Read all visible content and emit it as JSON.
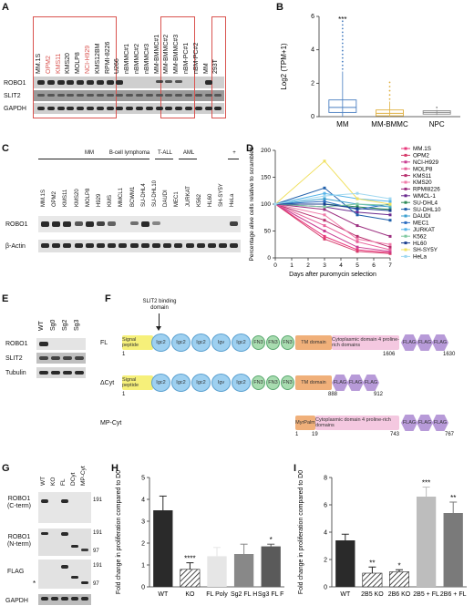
{
  "panels": {
    "A": {
      "label": "A",
      "lanes": [
        {
          "name": "MM.1S",
          "red": false
        },
        {
          "name": "OPM2",
          "red": true
        },
        {
          "name": "KMS11",
          "red": true
        },
        {
          "name": "KMS20",
          "red": false
        },
        {
          "name": "MOLP8",
          "red": false
        },
        {
          "name": "NCI-H929",
          "red": true
        },
        {
          "name": "KMS12BM",
          "red": false
        },
        {
          "name": "RPMI-8226",
          "red": false
        },
        {
          "name": "U266",
          "red": false
        },
        {
          "name": "nBMMC#1",
          "red": false
        },
        {
          "name": "nBMMC#2",
          "red": false
        },
        {
          "name": "nBMMC#3",
          "red": false
        },
        {
          "name": "MM-BMMC#1",
          "red": false
        },
        {
          "name": "MM-BMMC#2",
          "red": false
        },
        {
          "name": "MM-BMMC#3",
          "red": false
        },
        {
          "name": "nBM-PC#1",
          "red": false
        },
        {
          "name": "nBM-PC#2",
          "red": false
        },
        {
          "name": "MM",
          "red": false
        },
        {
          "name": "293T",
          "red": false
        }
      ],
      "rows": [
        "ROBO1",
        "SLIT2",
        "GAPDH"
      ]
    },
    "B": {
      "label": "B",
      "significance": "***"
    },
    "C": {
      "label": "C",
      "groups": [
        "MM",
        "B-cell lymphoma",
        "T-ALL",
        "AML",
        "+"
      ],
      "lanes": [
        "MM.1S",
        "OPM2",
        "KMS11",
        "KMS20",
        "MOLP8",
        "H929",
        "KMS",
        "MMCL1",
        "BCWM1",
        "SU-DHL4",
        "SU-DHL10",
        "DAUDI",
        "MEC1",
        "JURKAT",
        "K562",
        "HL60",
        "SH-SY5Y",
        "HeLa"
      ],
      "rows": [
        "ROBO1",
        "β-Actin"
      ]
    },
    "D": {
      "label": "D"
    },
    "E": {
      "label": "E",
      "lanes": [
        "WT",
        "Sg0",
        "Sg2",
        "Sg3"
      ],
      "rows": [
        "ROBO1",
        "SLIT2",
        "Tubulin"
      ]
    },
    "F": {
      "label": "F",
      "annotation": "SLIT2 binding domain",
      "constructs": [
        {
          "name": "FL",
          "start": "1",
          "end": "1606",
          "end2": "1630"
        },
        {
          "name": "ΔCyt",
          "start": "1",
          "mid": "888",
          "end": "912"
        },
        {
          "name": "MP-Cyt",
          "start": "1",
          "mid": "19",
          "end": "743",
          "end2": "767"
        }
      ],
      "domains": {
        "signal": "Signal peptide",
        "igc2": "Igc2",
        "igv": "Igv",
        "fn3": "FN3",
        "tm": "TM domain",
        "cyto": "Cytoplasmic domain 4 proline-rich domains",
        "flag": "FLAG",
        "myr": "MyrPalm"
      }
    },
    "G": {
      "label": "G",
      "lanes": [
        "WT",
        "KO",
        "FL",
        "DCyt",
        "MP-Cyt"
      ],
      "rows": [
        "ROBO1 (C-term)",
        "ROBO1 (N-term)",
        "FLAG",
        "GAPDH"
      ],
      "markers": [
        "191",
        "191",
        "97",
        "191",
        "97"
      ],
      "star": "*"
    },
    "H": {
      "label": "H"
    },
    "I": {
      "label": "I"
    }
  },
  "chart_data": [
    {
      "type": "box",
      "panel": "B",
      "ylabel": "Log2 (TPM+1)",
      "categories": [
        "MM",
        "MM-BMMC",
        "NPC"
      ],
      "ylim": [
        0,
        6
      ],
      "yticks": [
        0,
        2,
        4,
        6
      ],
      "boxes": [
        {
          "name": "MM",
          "q1": 0.25,
          "median": 0.55,
          "q3": 1.0,
          "whisker_low": 0,
          "whisker_high": 2.7,
          "color": "#4a7fc1"
        },
        {
          "name": "MM-BMMC",
          "q1": 0.05,
          "median": 0.2,
          "q3": 0.4,
          "whisker_low": 0,
          "whisker_high": 0.9,
          "color": "#e0b040"
        },
        {
          "name": "NPC",
          "q1": 0.15,
          "median": 0.25,
          "q3": 0.35,
          "whisker_low": 0.1,
          "whisker_high": 0.4,
          "color": "#888888"
        }
      ]
    },
    {
      "type": "line",
      "panel": "D",
      "xlabel": "Days after puromycin selection",
      "ylabel": "Percentage alive cells relative to scrambled",
      "x": [
        0,
        3,
        5,
        7
      ],
      "xlim": [
        0,
        7
      ],
      "xticks": [
        0,
        1,
        2,
        3,
        4,
        5,
        6,
        7
      ],
      "ylim": [
        0,
        200
      ],
      "yticks": [
        0,
        50,
        100,
        150,
        200
      ],
      "series": [
        {
          "name": "MM.1S",
          "color": "#e8357a",
          "values": [
            100,
            40,
            15,
            10
          ]
        },
        {
          "name": "OPM2",
          "color": "#d63a6a",
          "values": [
            100,
            35,
            12,
            8
          ]
        },
        {
          "name": "NCI-H929",
          "color": "#c93d92",
          "values": [
            100,
            50,
            20,
            12
          ]
        },
        {
          "name": "MOLP8",
          "color": "#e8609a",
          "values": [
            100,
            60,
            30,
            15
          ]
        },
        {
          "name": "KMS11",
          "color": "#b8306e",
          "values": [
            100,
            70,
            40,
            20
          ]
        },
        {
          "name": "KMS20",
          "color": "#f07ba8",
          "values": [
            100,
            80,
            35,
            25
          ]
        },
        {
          "name": "RPMI8226",
          "color": "#9b2d7f",
          "values": [
            100,
            90,
            60,
            40
          ]
        },
        {
          "name": "WMCL-1",
          "color": "#6a2a8f",
          "values": [
            100,
            95,
            85,
            80
          ]
        },
        {
          "name": "SU-DHL4",
          "color": "#2e8b57",
          "values": [
            100,
            100,
            95,
            90
          ]
        },
        {
          "name": "SU-DHL10",
          "color": "#1f5faa",
          "values": [
            100,
            130,
            80,
            70
          ]
        },
        {
          "name": "DAUDI",
          "color": "#3ca0d0",
          "values": [
            100,
            110,
            100,
            95
          ]
        },
        {
          "name": "MEC1",
          "color": "#2b6cc0",
          "values": [
            100,
            105,
            90,
            100
          ]
        },
        {
          "name": "JURKAT",
          "color": "#56b4e9",
          "values": [
            100,
            120,
            110,
            105
          ]
        },
        {
          "name": "K562",
          "color": "#7ec8a0",
          "values": [
            100,
            95,
            100,
            98
          ]
        },
        {
          "name": "HL60",
          "color": "#1b3f8f",
          "values": [
            100,
            100,
            92,
            88
          ]
        },
        {
          "name": "SH-SY5Y",
          "color": "#f0e060",
          "values": [
            100,
            180,
            110,
            100
          ]
        },
        {
          "name": "HeLa",
          "color": "#a0d8f0",
          "values": [
            100,
            115,
            120,
            110
          ]
        }
      ]
    },
    {
      "type": "bar",
      "panel": "H",
      "ylabel": "Fold change in proliferation compared to D0",
      "categories": [
        "WT",
        "KO",
        "FL Poly",
        "Sg2 FL H",
        "Sg3 FL F"
      ],
      "values": [
        3.5,
        0.8,
        1.4,
        1.5,
        1.85
      ],
      "errors": [
        0.65,
        0.3,
        0.4,
        0.45,
        0.1
      ],
      "significance": [
        "",
        "****",
        "",
        "",
        "*"
      ],
      "colors": [
        "#2a2a2a",
        "hatch",
        "#e6e6e6",
        "#888888",
        "#5a5a5a"
      ],
      "ylim": [
        0,
        5
      ],
      "yticks": [
        0,
        1,
        2,
        3,
        4,
        5
      ]
    },
    {
      "type": "bar",
      "panel": "I",
      "ylabel": "Fold change in proliferation compared to D0",
      "categories": [
        "WT",
        "2B5 KO",
        "2B6 KO",
        "2B5 + FL",
        "2B6 + FL"
      ],
      "values": [
        3.4,
        1.0,
        1.1,
        6.6,
        5.4
      ],
      "errors": [
        0.45,
        0.45,
        0.15,
        0.7,
        0.8
      ],
      "significance": [
        "",
        "**",
        "*",
        "***",
        "**"
      ],
      "colors": [
        "#2a2a2a",
        "hatch",
        "hatch",
        "#bdbdbd",
        "#7a7a7a"
      ],
      "ylim": [
        0,
        8
      ],
      "yticks": [
        0,
        2,
        4,
        6,
        8
      ]
    }
  ]
}
